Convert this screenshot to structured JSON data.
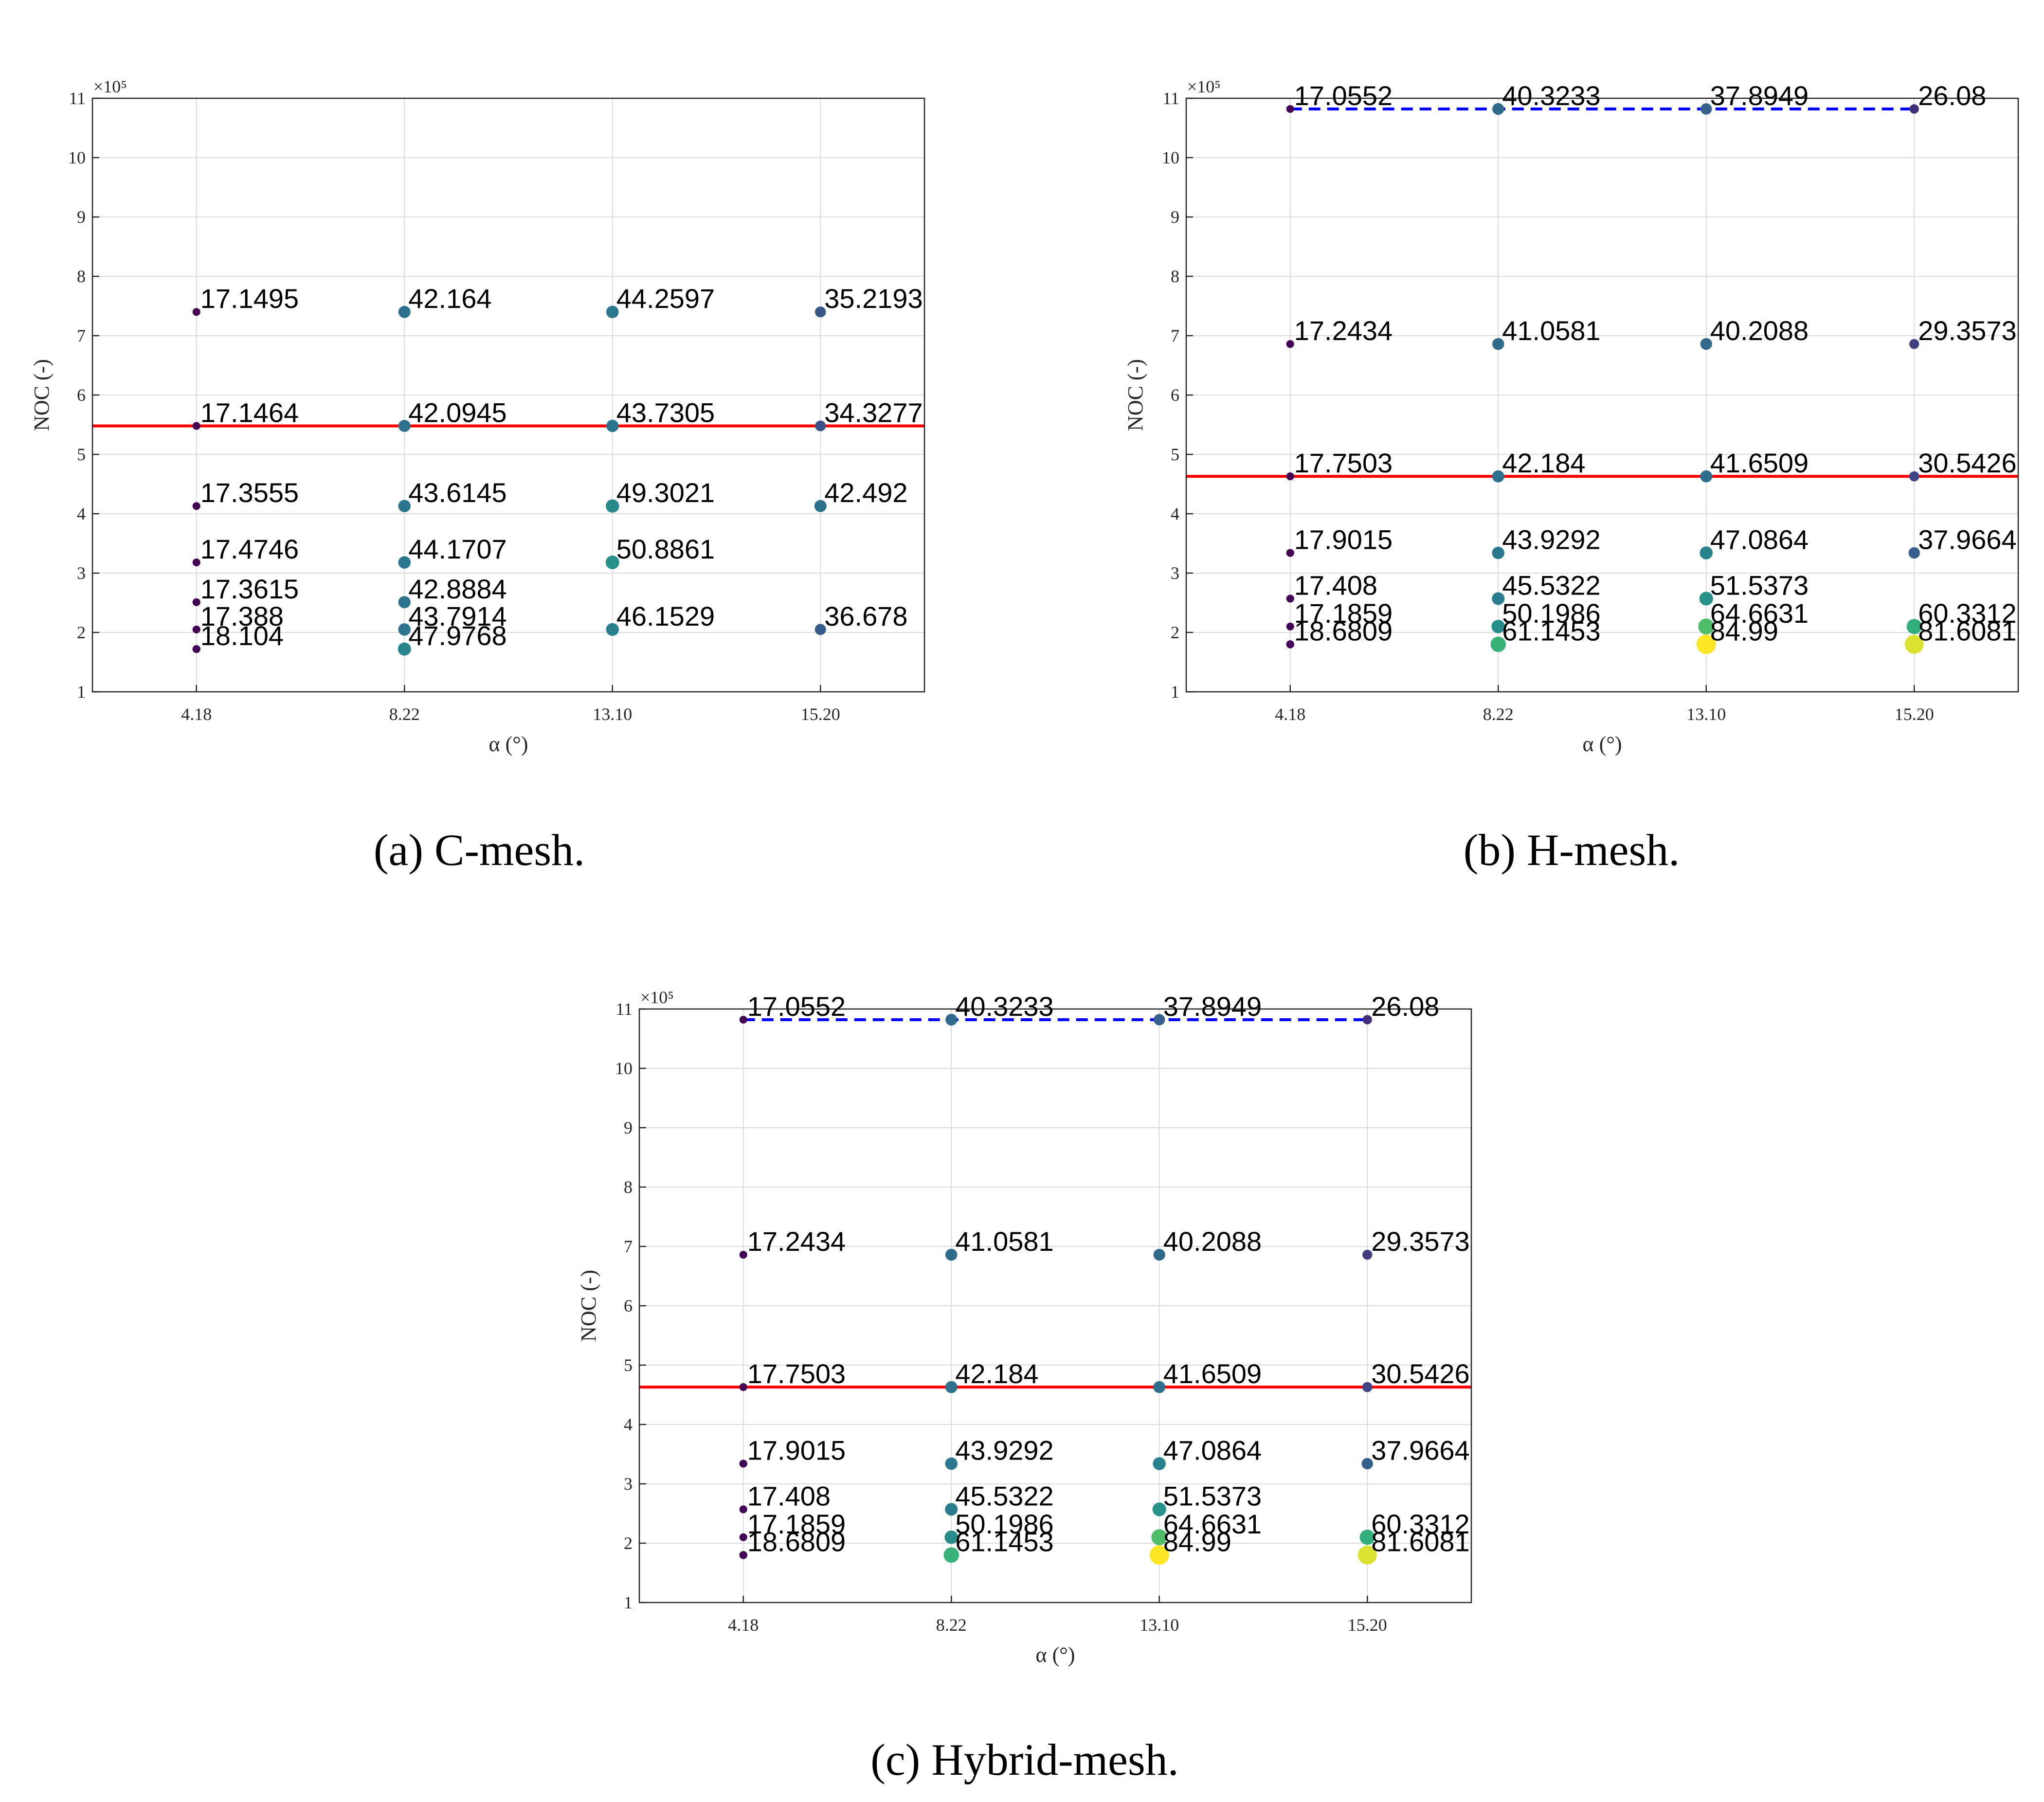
{
  "colors": {
    "threshold_line": "#ff0000",
    "reference_line": "#0000ff",
    "grid": "#dcdcdc",
    "axis": "#262626"
  },
  "chart_data": [
    {
      "id": "a",
      "type": "scatter",
      "caption": "(a) C-mesh.",
      "xlabel": "α (°)",
      "ylabel": "NOC (-)",
      "exponent_label": "×10⁵",
      "categories": [
        "4.18",
        "8.22",
        "13.10",
        "15.20"
      ],
      "yticks": [
        1,
        2,
        3,
        4,
        5,
        6,
        7,
        8,
        9,
        10,
        11
      ],
      "ylim": [
        1,
        11
      ],
      "grid": true,
      "color_scale": [
        17,
        85
      ],
      "threshold_line": 5.48,
      "points": [
        {
          "cat": 0,
          "y": 7.4,
          "label": "17.1495",
          "value": 17.1495
        },
        {
          "cat": 1,
          "y": 7.4,
          "label": "42.164",
          "value": 42.164
        },
        {
          "cat": 2,
          "y": 7.4,
          "label": "44.2597",
          "value": 44.2597
        },
        {
          "cat": 3,
          "y": 7.4,
          "label": "35.2193",
          "value": 35.2193
        },
        {
          "cat": 0,
          "y": 5.48,
          "label": "17.1464",
          "value": 17.1464
        },
        {
          "cat": 1,
          "y": 5.48,
          "label": "42.0945",
          "value": 42.0945
        },
        {
          "cat": 2,
          "y": 5.48,
          "label": "43.7305",
          "value": 43.7305
        },
        {
          "cat": 3,
          "y": 5.48,
          "label": "34.3277",
          "value": 34.3277
        },
        {
          "cat": 0,
          "y": 4.13,
          "label": "17.3555",
          "value": 17.3555
        },
        {
          "cat": 1,
          "y": 4.13,
          "label": "43.6145",
          "value": 43.6145
        },
        {
          "cat": 2,
          "y": 4.13,
          "label": "49.3021",
          "value": 49.3021
        },
        {
          "cat": 3,
          "y": 4.13,
          "label": "42.492",
          "value": 42.492
        },
        {
          "cat": 0,
          "y": 3.18,
          "label": "17.4746",
          "value": 17.4746
        },
        {
          "cat": 1,
          "y": 3.18,
          "label": "44.1707",
          "value": 44.1707
        },
        {
          "cat": 2,
          "y": 3.18,
          "label": "50.8861",
          "value": 50.8861
        },
        {
          "cat": 0,
          "y": 2.51,
          "label": "17.3615",
          "value": 17.3615
        },
        {
          "cat": 1,
          "y": 2.51,
          "label": "42.8884",
          "value": 42.8884
        },
        {
          "cat": 0,
          "y": 2.05,
          "label": "17.388",
          "value": 17.388
        },
        {
          "cat": 1,
          "y": 2.05,
          "label": "43.7914",
          "value": 43.7914
        },
        {
          "cat": 2,
          "y": 2.05,
          "label": "46.1529",
          "value": 46.1529
        },
        {
          "cat": 3,
          "y": 2.05,
          "label": "36.678",
          "value": 36.678
        },
        {
          "cat": 0,
          "y": 1.72,
          "label": "18.104",
          "value": 18.104
        },
        {
          "cat": 1,
          "y": 1.72,
          "label": "47.9768",
          "value": 47.9768
        }
      ]
    },
    {
      "id": "b",
      "type": "scatter",
      "caption": "(b) H-mesh.",
      "xlabel": "α (°)",
      "ylabel": "NOC (-)",
      "exponent_label": "×10⁵",
      "categories": [
        "4.18",
        "8.22",
        "13.10",
        "15.20"
      ],
      "yticks": [
        1,
        2,
        3,
        4,
        5,
        6,
        7,
        8,
        9,
        10,
        11
      ],
      "ylim": [
        1,
        11
      ],
      "grid": true,
      "color_scale": [
        17,
        85
      ],
      "threshold_line": 4.63,
      "reference_line": 10.82,
      "points": [
        {
          "cat": 0,
          "y": 10.82,
          "label": "17.0552",
          "value": 17.0552
        },
        {
          "cat": 1,
          "y": 10.82,
          "label": "40.3233",
          "value": 40.3233
        },
        {
          "cat": 2,
          "y": 10.82,
          "label": "37.8949",
          "value": 37.8949
        },
        {
          "cat": 3,
          "y": 10.82,
          "label": "26.08",
          "value": 26.08
        },
        {
          "cat": 0,
          "y": 6.86,
          "label": "17.2434",
          "value": 17.2434
        },
        {
          "cat": 1,
          "y": 6.86,
          "label": "41.0581",
          "value": 41.0581
        },
        {
          "cat": 2,
          "y": 6.86,
          "label": "40.2088",
          "value": 40.2088
        },
        {
          "cat": 3,
          "y": 6.86,
          "label": "29.3573",
          "value": 29.3573
        },
        {
          "cat": 0,
          "y": 4.63,
          "label": "17.7503",
          "value": 17.7503
        },
        {
          "cat": 1,
          "y": 4.63,
          "label": "42.184",
          "value": 42.184
        },
        {
          "cat": 2,
          "y": 4.63,
          "label": "41.6509",
          "value": 41.6509
        },
        {
          "cat": 3,
          "y": 4.63,
          "label": "30.5426",
          "value": 30.5426
        },
        {
          "cat": 0,
          "y": 3.34,
          "label": "17.9015",
          "value": 17.9015
        },
        {
          "cat": 1,
          "y": 3.34,
          "label": "43.9292",
          "value": 43.9292
        },
        {
          "cat": 2,
          "y": 3.34,
          "label": "47.0864",
          "value": 47.0864
        },
        {
          "cat": 3,
          "y": 3.34,
          "label": "37.9664",
          "value": 37.9664
        },
        {
          "cat": 0,
          "y": 2.57,
          "label": "17.408",
          "value": 17.408
        },
        {
          "cat": 1,
          "y": 2.57,
          "label": "45.5322",
          "value": 45.5322
        },
        {
          "cat": 2,
          "y": 2.57,
          "label": "51.5373",
          "value": 51.5373
        },
        {
          "cat": 0,
          "y": 2.1,
          "label": "17.1859",
          "value": 17.1859
        },
        {
          "cat": 1,
          "y": 2.1,
          "label": "50.1986",
          "value": 50.1986
        },
        {
          "cat": 2,
          "y": 2.1,
          "label": "64.6631",
          "value": 64.6631
        },
        {
          "cat": 3,
          "y": 2.1,
          "label": "60.3312",
          "value": 60.3312
        },
        {
          "cat": 0,
          "y": 1.8,
          "label": "18.6809",
          "value": 18.6809
        },
        {
          "cat": 1,
          "y": 1.8,
          "label": "61.1453",
          "value": 61.1453
        },
        {
          "cat": 2,
          "y": 1.8,
          "label": "84.99",
          "value": 84.99
        },
        {
          "cat": 3,
          "y": 1.8,
          "label": "81.6081",
          "value": 81.6081
        }
      ]
    },
    {
      "id": "c",
      "type": "scatter",
      "caption": "(c) Hybrid-mesh.",
      "xlabel": "α (°)",
      "ylabel": "NOC (-)",
      "exponent_label": "×10⁵",
      "categories": [
        "4.18",
        "8.22",
        "13.10",
        "15.20"
      ],
      "yticks": [
        1,
        2,
        3,
        4,
        5,
        6,
        7,
        8,
        9,
        10,
        11
      ],
      "ylim": [
        1,
        11
      ],
      "grid": true,
      "color_scale": [
        17,
        85
      ],
      "threshold_line": 4.63,
      "reference_line": 10.82,
      "points": [
        {
          "cat": 0,
          "y": 10.82,
          "label": "17.0552",
          "value": 17.0552
        },
        {
          "cat": 1,
          "y": 10.82,
          "label": "40.3233",
          "value": 40.3233
        },
        {
          "cat": 2,
          "y": 10.82,
          "label": "37.8949",
          "value": 37.8949
        },
        {
          "cat": 3,
          "y": 10.82,
          "label": "26.08",
          "value": 26.08
        },
        {
          "cat": 0,
          "y": 6.86,
          "label": "17.2434",
          "value": 17.2434
        },
        {
          "cat": 1,
          "y": 6.86,
          "label": "41.0581",
          "value": 41.0581
        },
        {
          "cat": 2,
          "y": 6.86,
          "label": "40.2088",
          "value": 40.2088
        },
        {
          "cat": 3,
          "y": 6.86,
          "label": "29.3573",
          "value": 29.3573
        },
        {
          "cat": 0,
          "y": 4.63,
          "label": "17.7503",
          "value": 17.7503
        },
        {
          "cat": 1,
          "y": 4.63,
          "label": "42.184",
          "value": 42.184
        },
        {
          "cat": 2,
          "y": 4.63,
          "label": "41.6509",
          "value": 41.6509
        },
        {
          "cat": 3,
          "y": 4.63,
          "label": "30.5426",
          "value": 30.5426
        },
        {
          "cat": 0,
          "y": 3.34,
          "label": "17.9015",
          "value": 17.9015
        },
        {
          "cat": 1,
          "y": 3.34,
          "label": "43.9292",
          "value": 43.9292
        },
        {
          "cat": 2,
          "y": 3.34,
          "label": "47.0864",
          "value": 47.0864
        },
        {
          "cat": 3,
          "y": 3.34,
          "label": "37.9664",
          "value": 37.9664
        },
        {
          "cat": 0,
          "y": 2.57,
          "label": "17.408",
          "value": 17.408
        },
        {
          "cat": 1,
          "y": 2.57,
          "label": "45.5322",
          "value": 45.5322
        },
        {
          "cat": 2,
          "y": 2.57,
          "label": "51.5373",
          "value": 51.5373
        },
        {
          "cat": 0,
          "y": 2.1,
          "label": "17.1859",
          "value": 17.1859
        },
        {
          "cat": 1,
          "y": 2.1,
          "label": "50.1986",
          "value": 50.1986
        },
        {
          "cat": 2,
          "y": 2.1,
          "label": "64.6631",
          "value": 64.6631
        },
        {
          "cat": 3,
          "y": 2.1,
          "label": "60.3312",
          "value": 60.3312
        },
        {
          "cat": 0,
          "y": 1.8,
          "label": "18.6809",
          "value": 18.6809
        },
        {
          "cat": 1,
          "y": 1.8,
          "label": "61.1453",
          "value": 61.1453
        },
        {
          "cat": 2,
          "y": 1.8,
          "label": "84.99",
          "value": 84.99
        },
        {
          "cat": 3,
          "y": 1.8,
          "label": "81.6081",
          "value": 81.6081
        }
      ]
    }
  ]
}
